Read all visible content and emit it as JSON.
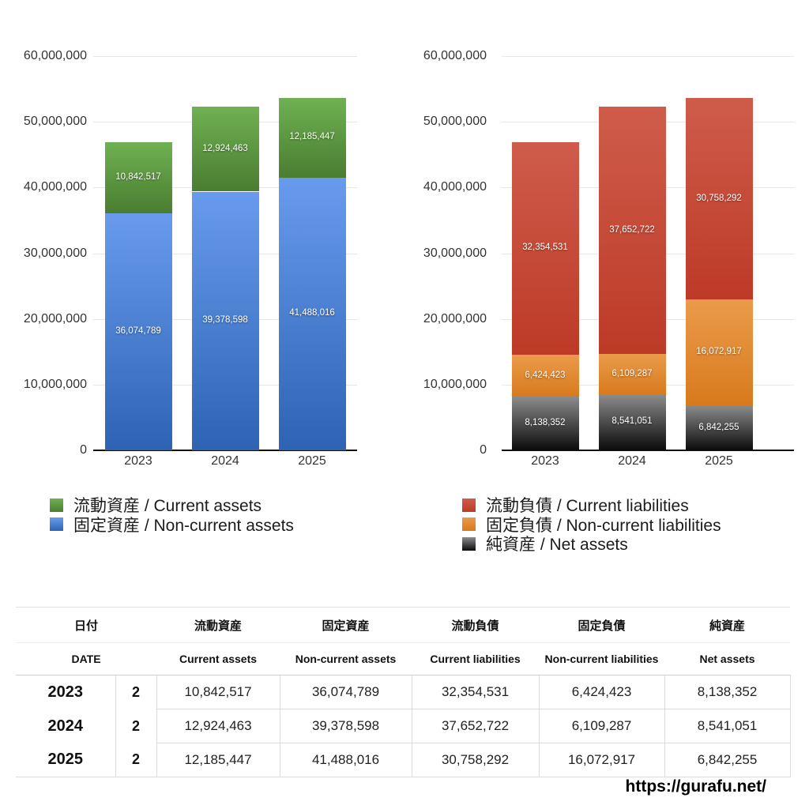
{
  "chart_data": [
    {
      "type": "bar",
      "stacked": true,
      "title": "",
      "categories": [
        "2023",
        "2024",
        "2025"
      ],
      "series": [
        {
          "name": "流動資産 / Current assets",
          "values": [
            10842517,
            12924463,
            12185447
          ],
          "color_top": "#6fb152",
          "color_bottom": "#4a7d31"
        },
        {
          "name": "固定資産 / Non-current assets",
          "values": [
            36074789,
            39378598,
            41488016
          ],
          "color_top": "#689bed",
          "color_bottom": "#2e63b3"
        }
      ],
      "ylim": [
        0,
        60000000
      ],
      "ytick_labels": [
        "60,000,000",
        "50,000,000",
        "40,000,000",
        "30,000,000",
        "20,000,000",
        "10,000,000",
        "0"
      ],
      "grid": true,
      "legend_position": "bottom"
    },
    {
      "type": "bar",
      "stacked": true,
      "title": "",
      "categories": [
        "2023",
        "2024",
        "2025"
      ],
      "series": [
        {
          "name": "流動負債 / Current liabilities",
          "values": [
            32354531,
            37652722,
            30758292
          ],
          "color_top": "#cf5c4b",
          "color_bottom": "#bd3a27"
        },
        {
          "name": "固定負債 / Non-current liabilities",
          "values": [
            6424423,
            6109287,
            16072917
          ],
          "color_top": "#ea9b4b",
          "color_bottom": "#d87a1d"
        },
        {
          "name": "純資産 / Net assets",
          "values": [
            8138352,
            8541051,
            6842255
          ],
          "color_top": "#8c8c8c",
          "color_bottom": "#0b0b0b"
        }
      ],
      "ylim": [
        0,
        60000000
      ],
      "ytick_labels": [
        "60,000,000",
        "50,000,000",
        "40,000,000",
        "30,000,000",
        "20,000,000",
        "10,000,000",
        "0"
      ],
      "grid": true,
      "legend_position": "bottom"
    }
  ],
  "table": {
    "header_jp": [
      "日付",
      "流動資産",
      "固定資産",
      "流動負債",
      "固定負債",
      "純資産"
    ],
    "header_en": [
      "DATE",
      "Current assets",
      "Non-current assets",
      "Current liabilities",
      "Non-current liabilities",
      "Net assets"
    ],
    "rows": [
      [
        "2023",
        "2",
        "10,842,517",
        "36,074,789",
        "32,354,531",
        "6,424,423",
        "8,138,352"
      ],
      [
        "2024",
        "2",
        "12,924,463",
        "39,378,598",
        "37,652,722",
        "6,109,287",
        "8,541,051"
      ],
      [
        "2025",
        "2",
        "12,185,447",
        "41,488,016",
        "30,758,292",
        "16,072,917",
        "6,842,255"
      ]
    ]
  },
  "footer": {
    "url": "https://gurafu.net/"
  }
}
